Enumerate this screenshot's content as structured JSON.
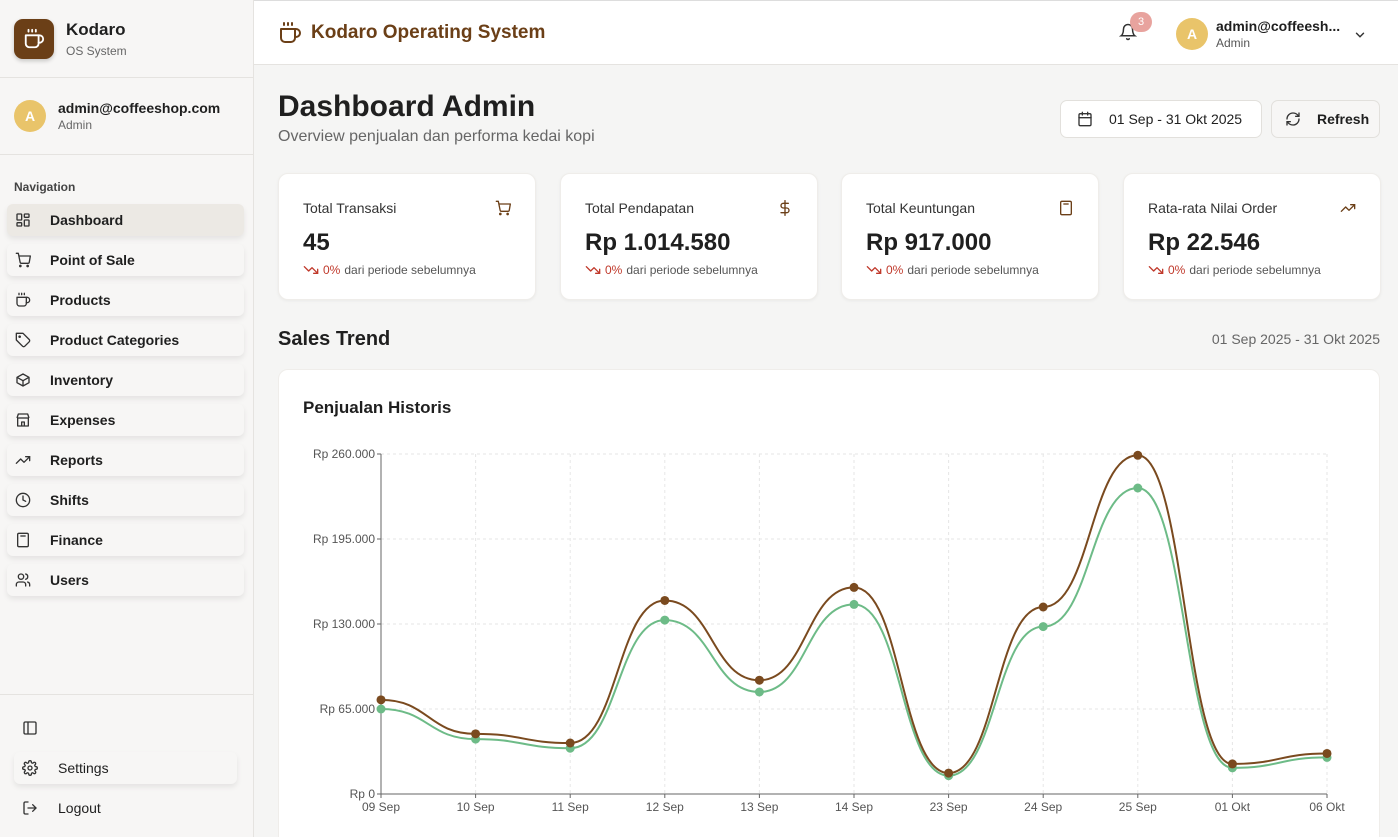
{
  "brand": {
    "name": "Kodaro",
    "subtitle": "OS System"
  },
  "sidebar_user": {
    "email": "admin@coffeeshop.com",
    "role": "Admin",
    "initial": "A"
  },
  "nav": {
    "title": "Navigation",
    "items": [
      {
        "label": "Dashboard",
        "icon": "dashboard-icon",
        "active": true
      },
      {
        "label": "Point of Sale",
        "icon": "cart-icon"
      },
      {
        "label": "Products",
        "icon": "coffee-icon"
      },
      {
        "label": "Product Categories",
        "icon": "tag-icon"
      },
      {
        "label": "Inventory",
        "icon": "box-icon"
      },
      {
        "label": "Expenses",
        "icon": "store-icon"
      },
      {
        "label": "Reports",
        "icon": "trending-icon"
      },
      {
        "label": "Shifts",
        "icon": "clock-icon"
      },
      {
        "label": "Finance",
        "icon": "calculator-icon"
      },
      {
        "label": "Users",
        "icon": "users-icon"
      }
    ]
  },
  "sidebar_bottom": {
    "settings": "Settings",
    "logout": "Logout"
  },
  "header": {
    "title": "Kodaro Operating System",
    "notification_count": "3",
    "user_email": "admin@coffeesh...",
    "user_role": "Admin",
    "user_initial": "A"
  },
  "page": {
    "title": "Dashboard Admin",
    "subtitle": "Overview penjualan dan performa kedai kopi",
    "date_range": "01 Sep - 31 Okt 2025",
    "refresh": "Refresh"
  },
  "stats": [
    {
      "title": "Total Transaksi",
      "value": "45",
      "change": "0%",
      "change_text": "dari periode sebelumnya",
      "icon": "cart-icon"
    },
    {
      "title": "Total Pendapatan",
      "value": "Rp 1.014.580",
      "change": "0%",
      "change_text": "dari periode sebelumnya",
      "icon": "dollar-icon"
    },
    {
      "title": "Total Keuntungan",
      "value": "Rp 917.000",
      "change": "0%",
      "change_text": "dari periode sebelumnya",
      "icon": "calculator-icon"
    },
    {
      "title": "Rata-rata Nilai Order",
      "value": "Rp 22.546",
      "change": "0%",
      "change_text": "dari periode sebelumnya",
      "icon": "trending-up-icon"
    }
  ],
  "sales_trend": {
    "title": "Sales Trend",
    "range": "01 Sep 2025 - 31 Okt 2025",
    "chart_title": "Penjualan Historis"
  },
  "colors": {
    "brand": "#6b3f17",
    "series1": "#7a4a1f",
    "series2": "#6dbb87",
    "negative": "#c0392b"
  },
  "chart_data": {
    "type": "line",
    "title": "Penjualan Historis",
    "categories": [
      "09 Sep",
      "10 Sep",
      "11 Sep",
      "12 Sep",
      "13 Sep",
      "14 Sep",
      "23 Sep",
      "24 Sep",
      "25 Sep",
      "01 Okt",
      "06 Okt"
    ],
    "y_ticks": [
      "Rp 0",
      "Rp 65.000",
      "Rp 130.000",
      "Rp 195.000",
      "Rp 260.000"
    ],
    "ylim": [
      0,
      260000
    ],
    "grid": true,
    "series": [
      {
        "values": [
          72000,
          46000,
          39000,
          148000,
          87000,
          158000,
          16000,
          143000,
          259000,
          23000,
          31000
        ],
        "color": "#7a4a1f"
      },
      {
        "values": [
          65000,
          42000,
          35000,
          133000,
          78000,
          145000,
          14000,
          128000,
          234000,
          20000,
          28000
        ],
        "color": "#6dbb87"
      }
    ]
  }
}
